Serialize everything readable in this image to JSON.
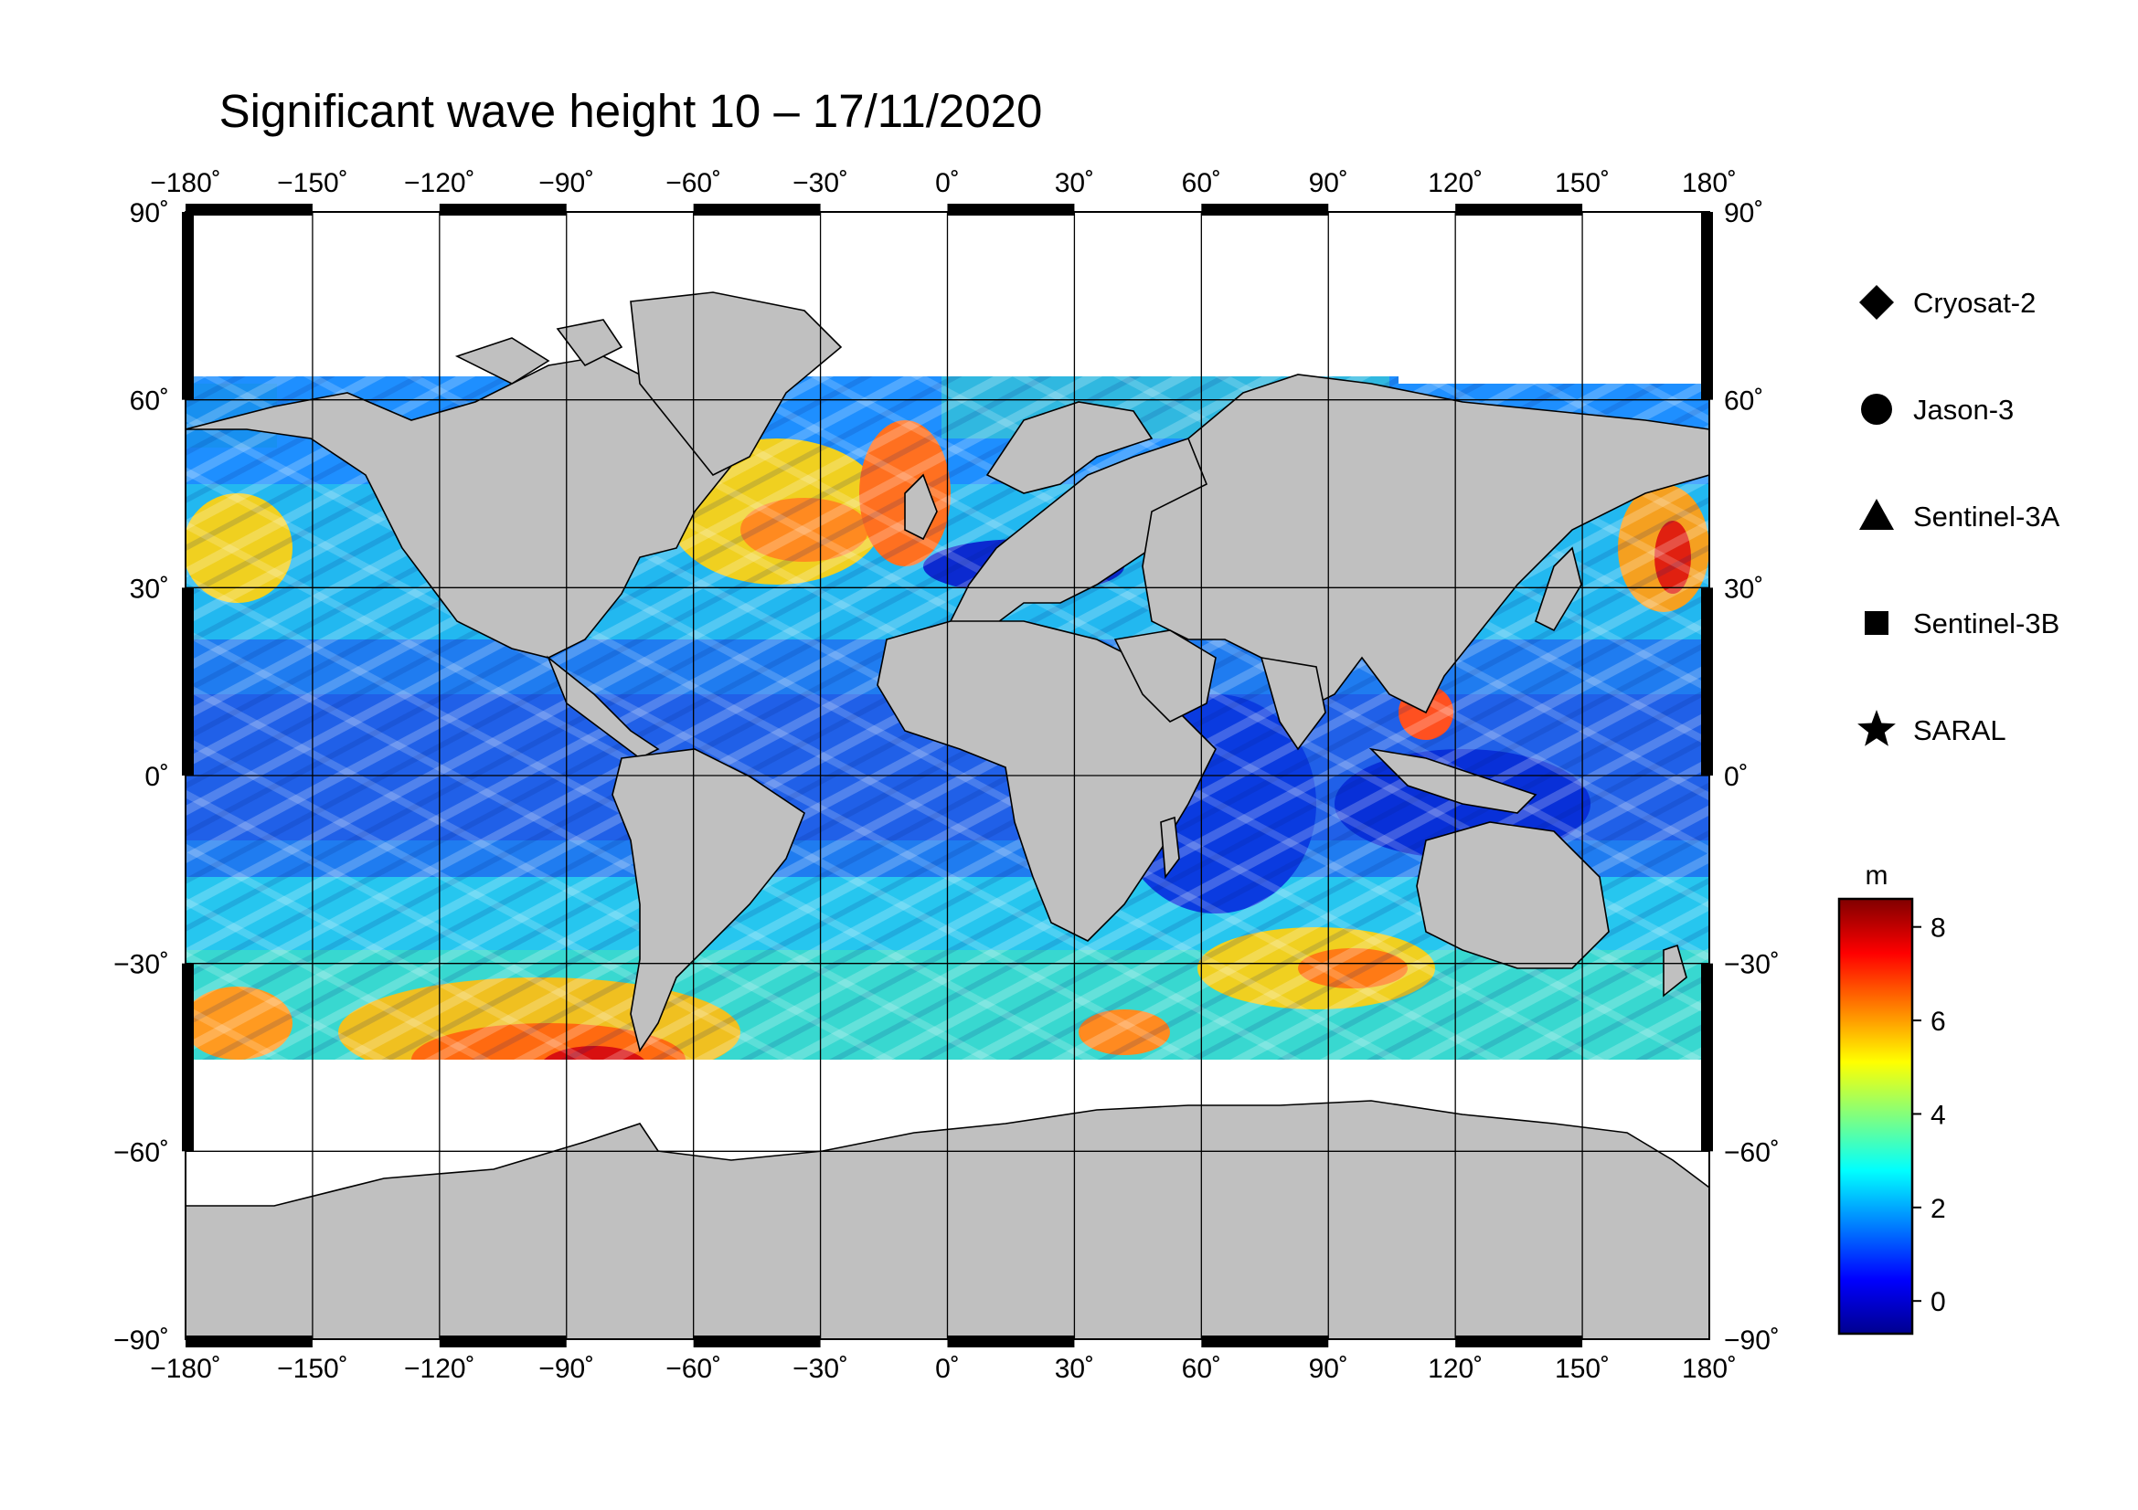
{
  "title": "Significant wave height 10 – 17/11/2020",
  "map": {
    "projection": "plate-carree",
    "lon_range": [
      -180,
      180
    ],
    "lat_range": [
      -90,
      90
    ],
    "lon_ticks": [
      "−180˚",
      "−150˚",
      "−120˚",
      "−90˚",
      "−60˚",
      "−30˚",
      "0˚",
      "30˚",
      "60˚",
      "90˚",
      "120˚",
      "150˚",
      "180˚"
    ],
    "lat_ticks_left": [
      "90˚",
      "60˚",
      "30˚",
      "0˚",
      "−30˚",
      "−60˚",
      "−90˚"
    ],
    "lat_ticks_right": [
      "90˚",
      "60˚",
      "30˚",
      "0˚",
      "−30˚",
      "−60˚",
      "−90˚"
    ],
    "grid": true,
    "land_color": "#c0c0c0",
    "ice_color": "#ffffff"
  },
  "legend": {
    "placement": "right",
    "items": [
      {
        "symbol": "diamond",
        "label": "Cryosat-2"
      },
      {
        "symbol": "circle",
        "label": "Jason-3"
      },
      {
        "symbol": "triangle",
        "label": "Sentinel-3A"
      },
      {
        "symbol": "square",
        "label": "Sentinel-3B"
      },
      {
        "symbol": "star",
        "label": "SARAL"
      }
    ]
  },
  "colorbar": {
    "unit": "m",
    "range": [
      -0.7,
      8.6
    ],
    "ticks": [
      "8",
      "6",
      "4",
      "2",
      "0"
    ],
    "colormap": "jet"
  }
}
